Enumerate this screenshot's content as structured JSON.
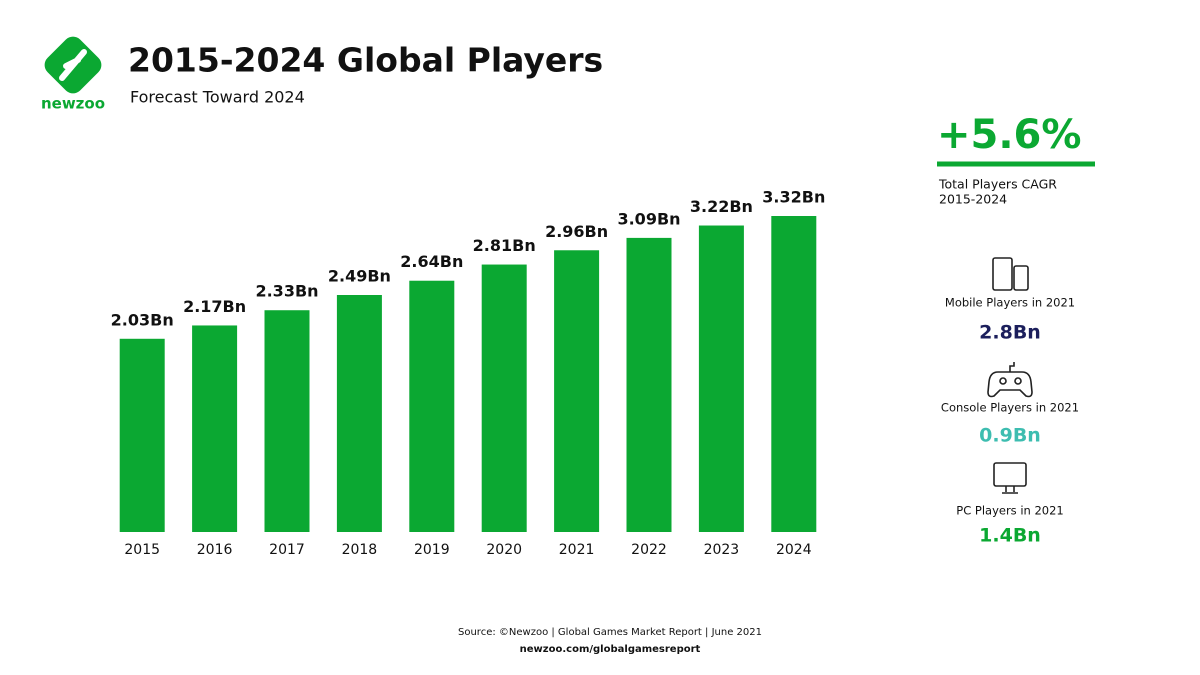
{
  "brand": "newzoo",
  "chart_data": {
    "type": "bar",
    "title": "2015-2024 Global Players",
    "subtitle": "Forecast Toward 2024",
    "categories": [
      "2015",
      "2016",
      "2017",
      "2018",
      "2019",
      "2020",
      "2021",
      "2022",
      "2023",
      "2024"
    ],
    "values": [
      2.03,
      2.17,
      2.33,
      2.49,
      2.64,
      2.81,
      2.96,
      3.09,
      3.22,
      3.32
    ],
    "value_labels": [
      "2.03Bn",
      "2.17Bn",
      "2.33Bn",
      "2.49Bn",
      "2.64Bn",
      "2.81Bn",
      "2.96Bn",
      "3.09Bn",
      "3.22Bn",
      "3.32Bn"
    ],
    "color": "#0ba832"
  },
  "highlight": {
    "value": "+5.6%",
    "label": [
      "Total Players CAGR",
      "2015-2024"
    ],
    "color": "#0ba832"
  },
  "stats": [
    {
      "label": "Mobile Players in 2021",
      "value": "2.8Bn",
      "color": "#1c1f5c"
    },
    {
      "label": "Console Players in 2021",
      "value": "0.9Bn",
      "color": "#3dbdb0"
    },
    {
      "label": "PC Players in 2021",
      "value": "1.4Bn",
      "color": "#0ba832"
    }
  ],
  "footer": {
    "source": "Source: ©Newzoo | Global Games Market Report | June 2021",
    "url": "newzoo.com/globalgamesreport"
  }
}
